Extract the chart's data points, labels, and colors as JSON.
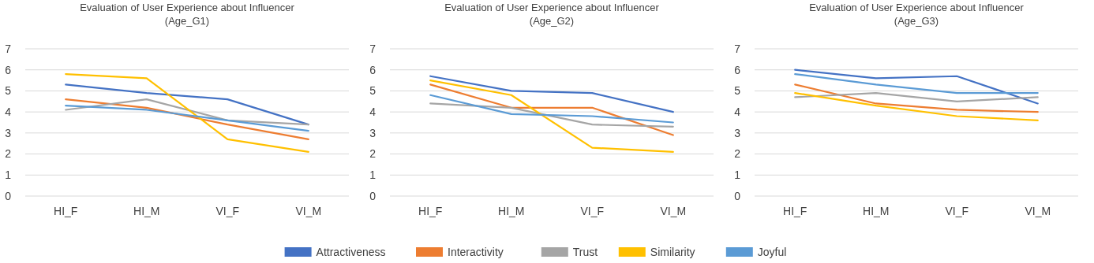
{
  "chart_data": [
    {
      "type": "line",
      "title": "Evaluation of User Experience about Influencer\n(Age_G1)",
      "categories": [
        "HI_F",
        "HI_M",
        "VI_F",
        "VI_M"
      ],
      "ylim": [
        0,
        7
      ],
      "yticks": [
        0,
        1,
        2,
        3,
        4,
        5,
        6,
        7
      ],
      "grid": "y",
      "legend": "bottom",
      "series": [
        {
          "name": "Attractiveness",
          "color": "#4472c4",
          "values": [
            5.3,
            4.9,
            4.6,
            3.4
          ]
        },
        {
          "name": "Interactivity",
          "color": "#ed7d31",
          "values": [
            4.6,
            4.2,
            3.4,
            2.7
          ]
        },
        {
          "name": "Trust",
          "color": "#a5a5a5",
          "values": [
            4.1,
            4.6,
            3.6,
            3.4
          ]
        },
        {
          "name": "Similarity",
          "color": "#ffc000",
          "values": [
            5.8,
            5.6,
            2.7,
            2.1
          ]
        },
        {
          "name": "Joyful",
          "color": "#5b9bd5",
          "values": [
            4.3,
            4.1,
            3.6,
            3.1
          ]
        }
      ]
    },
    {
      "type": "line",
      "title": "Evaluation of User Experience about Influencer\n(Age_G2)",
      "categories": [
        "HI_F",
        "HI_M",
        "VI_F",
        "VI_M"
      ],
      "ylim": [
        0,
        7
      ],
      "yticks": [
        0,
        1,
        2,
        3,
        4,
        5,
        6,
        7
      ],
      "grid": "y",
      "series": [
        {
          "color": "#4472c4",
          "values": [
            5.7,
            5.0,
            4.9,
            4.0
          ]
        },
        {
          "color": "#ed7d31",
          "values": [
            5.3,
            4.2,
            4.2,
            2.9
          ]
        },
        {
          "color": "#a5a5a5",
          "values": [
            4.4,
            4.2,
            3.4,
            3.3
          ]
        },
        {
          "color": "#ffc000",
          "values": [
            5.5,
            4.8,
            2.3,
            2.1
          ]
        },
        {
          "color": "#5b9bd5",
          "values": [
            4.8,
            3.9,
            3.8,
            3.5
          ]
        }
      ]
    },
    {
      "type": "line",
      "title": "Evaluation of User Experience about Influencer\n(Age_G3)",
      "categories": [
        "HI_F",
        "HI_M",
        "VI_F",
        "VI_M"
      ],
      "ylim": [
        0,
        7
      ],
      "yticks": [
        0,
        1,
        2,
        3,
        4,
        5,
        6,
        7
      ],
      "grid": "y",
      "series": [
        {
          "color": "#4472c4",
          "values": [
            6.0,
            5.6,
            5.7,
            4.4
          ]
        },
        {
          "color": "#ed7d31",
          "values": [
            5.3,
            4.4,
            4.1,
            4.0
          ]
        },
        {
          "color": "#a5a5a5",
          "values": [
            4.7,
            4.9,
            4.5,
            4.7
          ]
        },
        {
          "color": "#ffc000",
          "values": [
            4.9,
            4.3,
            3.8,
            3.6
          ]
        },
        {
          "color": "#5b9bd5",
          "values": [
            5.8,
            5.3,
            4.9,
            4.9
          ]
        }
      ]
    }
  ]
}
